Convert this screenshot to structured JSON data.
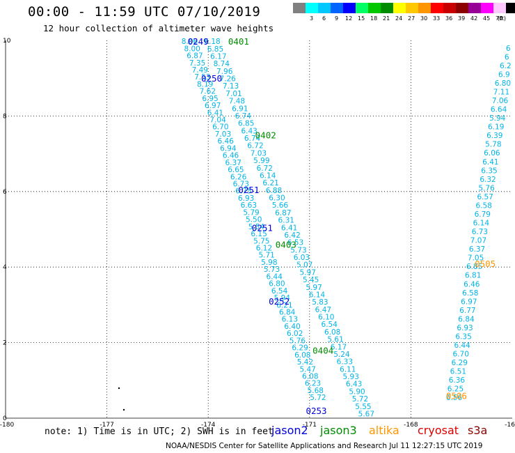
{
  "header": {
    "title": "00:00 - 11:59 UTC 07/10/2019",
    "subtitle": "12 hour collection of altimeter wave heights"
  },
  "colorbar": {
    "unit": "(ft)",
    "bins": [
      {
        "label": "",
        "color": "#808080"
      },
      {
        "label": "3",
        "color": "#00ffff"
      },
      {
        "label": "6",
        "color": "#00c8ff"
      },
      {
        "label": "9",
        "color": "#0064ff"
      },
      {
        "label": "12",
        "color": "#0000ff"
      },
      {
        "label": "15",
        "color": "#00ff64"
      },
      {
        "label": "18",
        "color": "#00c800"
      },
      {
        "label": "21",
        "color": "#008c00"
      },
      {
        "label": "24",
        "color": "#ffff00"
      },
      {
        "label": "27",
        "color": "#ffc800"
      },
      {
        "label": "30",
        "color": "#ff9600"
      },
      {
        "label": "33",
        "color": "#ff0000"
      },
      {
        "label": "36",
        "color": "#c80000"
      },
      {
        "label": "39",
        "color": "#8c0000"
      },
      {
        "label": "42",
        "color": "#960096"
      },
      {
        "label": "45",
        "color": "#ff00ff"
      },
      {
        "label": "70",
        "color": "#ffc8ff"
      },
      {
        "label": "",
        "color": "#000000"
      }
    ]
  },
  "note": "note: 1) Time is in UTC; 2) SWH is in feet",
  "legend": [
    {
      "name": "jason2",
      "color": "#0000dd"
    },
    {
      "name": "jason3",
      "color": "#008c00"
    },
    {
      "name": "altika",
      "color": "#ff9600"
    },
    {
      "name": "cryosat",
      "color": "#dd0000"
    },
    {
      "name": "s3a",
      "color": "#8c0000"
    }
  ],
  "footer": "NOAA/NESDIS Center for Satellite Applications and Research   Jul 11 12:27:15 UTC 2019",
  "chart_data": {
    "type": "scatter",
    "xlim": [
      -180,
      -165
    ],
    "ylim": [
      0,
      10
    ],
    "xticks": [
      "-180",
      "-177",
      "-174",
      "-171",
      "-168",
      "-16"
    ],
    "yticks": [
      "0",
      "2",
      "4",
      "6",
      "8",
      "10"
    ],
    "grid": true,
    "point_color": "#00b4e6",
    "tracks": [
      {
        "lon_start": -174.55,
        "lon_end": -170.75,
        "lat_start": 9.98,
        "lat_end": 0.55,
        "values": [
          "8.06",
          "8.00",
          "6.87",
          "7.35",
          "7.49",
          "7.53",
          "8.19",
          "7.62",
          "6.95",
          "6.97",
          "6.41",
          "7.04",
          "6.70",
          "7.03",
          "6.46",
          "6.94",
          "6.46",
          "6.37",
          "6.65",
          "6.26",
          "6.73",
          "6.75",
          "6.93",
          "6.63",
          "5.79",
          "5.50",
          "5.54",
          "6.15",
          "5.75",
          "6.12",
          "5.71",
          "5.98",
          "5.73",
          "6.44",
          "6.80",
          "6.54",
          "5.94",
          "6.21",
          "6.84",
          "6.13",
          "6.40",
          "6.02",
          "5.76",
          "6.29",
          "6.08",
          "5.42",
          "5.47",
          "6.08",
          "6.23",
          "5.68",
          "5.72"
        ]
      },
      {
        "lon_start": -173.88,
        "lon_end": -169.32,
        "lat_start": 9.98,
        "lat_end": 0.12,
        "values": [
          "6.18",
          "6.85",
          "6.17",
          "8.74",
          "7.96",
          "7.26",
          "7.13",
          "7.01",
          "7.48",
          "6.91",
          "6.74",
          "6.85",
          "6.43",
          "6.74",
          "6.72",
          "7.03",
          "5.99",
          "6.72",
          "6.14",
          "6.21",
          "6.88",
          "6.30",
          "5.66",
          "6.87",
          "6.31",
          "6.41",
          "6.42",
          "6.53",
          "5.73",
          "6.03",
          "5.07",
          "5.97",
          "5.45",
          "5.97",
          "6.14",
          "5.83",
          "6.47",
          "6.10",
          "6.54",
          "6.08",
          "5.61",
          "6.17",
          "5.24",
          "6.33",
          "6.11",
          "5.93",
          "6.43",
          "5.90",
          "5.72",
          "5.55",
          "5.67"
        ]
      },
      {
        "lon_start": -165.12,
        "lon_end": -166.72,
        "lat_start": 9.8,
        "lat_end": 0.55,
        "values": [
          "6",
          "6",
          "6.2",
          "6.9",
          "6.80",
          "7.11",
          "7.06",
          "6.64",
          "5.94",
          "6.19",
          "6.39",
          "5.78",
          "6.06",
          "6.41",
          "6.35",
          "6.32",
          "5.76",
          "6.57",
          "6.58",
          "6.79",
          "6.14",
          "6.73",
          "7.07",
          "6.37",
          "7.05",
          "6.85",
          "6.81",
          "6.46",
          "6.58",
          "6.97",
          "6.77",
          "6.84",
          "6.93",
          "6.35",
          "6.44",
          "6.70",
          "6.29",
          "6.51",
          "6.36",
          "6.25",
          "6.56"
        ]
      }
    ],
    "time_labels": [
      {
        "text": "0249",
        "satellite": "jason2",
        "lon": -174.3,
        "lat": 9.98
      },
      {
        "text": "0250",
        "satellite": "jason2",
        "lon": -173.9,
        "lat": 9.0
      },
      {
        "text": "0251",
        "satellite": "jason2",
        "lon": -172.8,
        "lat": 6.05
      },
      {
        "text": "0251",
        "satellite": "jason2",
        "lon": -172.4,
        "lat": 5.05
      },
      {
        "text": "0252",
        "satellite": "jason2",
        "lon": -171.9,
        "lat": 3.1
      },
      {
        "text": "0253",
        "satellite": "jason2",
        "lon": -170.8,
        "lat": 0.2
      },
      {
        "text": "0401",
        "satellite": "jason3",
        "lon": -173.1,
        "lat": 9.98
      },
      {
        "text": "0402",
        "satellite": "jason3",
        "lon": -172.3,
        "lat": 7.5
      },
      {
        "text": "0403",
        "satellite": "jason3",
        "lon": -171.7,
        "lat": 4.6
      },
      {
        "text": "0404",
        "satellite": "jason3",
        "lon": -170.6,
        "lat": 1.8
      },
      {
        "text": "0505",
        "satellite": "altika",
        "lon": -165.8,
        "lat": 4.1
      },
      {
        "text": "0506",
        "satellite": "altika",
        "lon": -166.65,
        "lat": 0.6
      }
    ]
  }
}
